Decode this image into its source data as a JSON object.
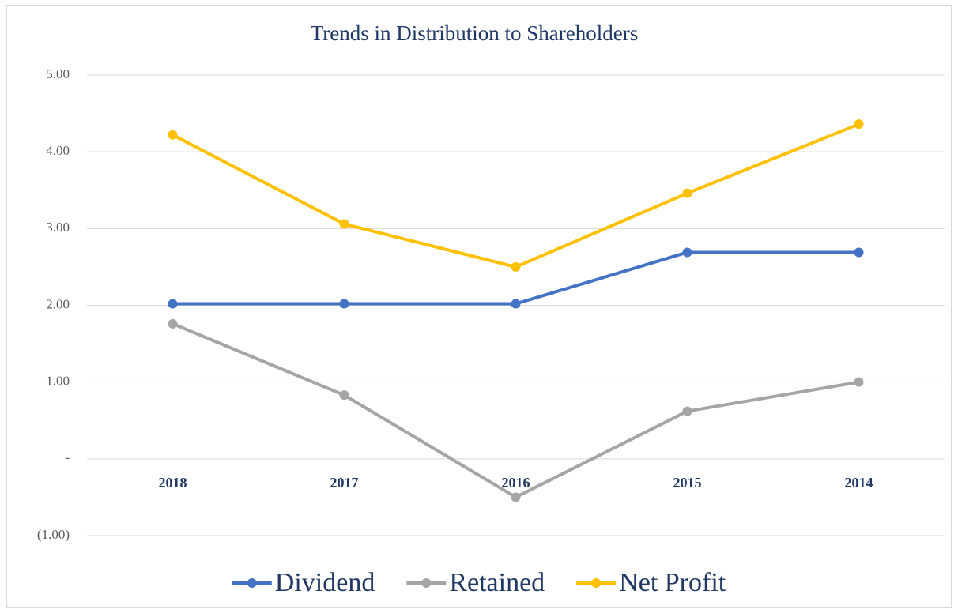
{
  "chart_data": {
    "type": "line",
    "title": "Trends in Distribution to Shareholders",
    "categories": [
      "2018",
      "2017",
      "2016",
      "2015",
      "2014"
    ],
    "series": [
      {
        "name": "Dividend",
        "color": "#4472c4",
        "values": [
          2.02,
          2.02,
          2.02,
          2.69,
          2.69
        ]
      },
      {
        "name": "Retained",
        "color": "#a5a5a5",
        "values": [
          1.76,
          0.83,
          -0.5,
          0.62,
          1.0
        ]
      },
      {
        "name": "Net Profit",
        "color": "#ffc000",
        "values": [
          4.22,
          3.06,
          2.5,
          3.46,
          4.36
        ]
      }
    ],
    "ylim": [
      -1,
      5
    ],
    "yticks": [
      {
        "value": -1,
        "label": "(1.00)"
      },
      {
        "value": 0,
        "label": "-"
      },
      {
        "value": 1,
        "label": "1.00"
      },
      {
        "value": 2,
        "label": "2.00"
      },
      {
        "value": 3,
        "label": "3.00"
      },
      {
        "value": 4,
        "label": "4.00"
      },
      {
        "value": 5,
        "label": "5.00"
      }
    ],
    "grid": true,
    "legend": "bottom"
  }
}
